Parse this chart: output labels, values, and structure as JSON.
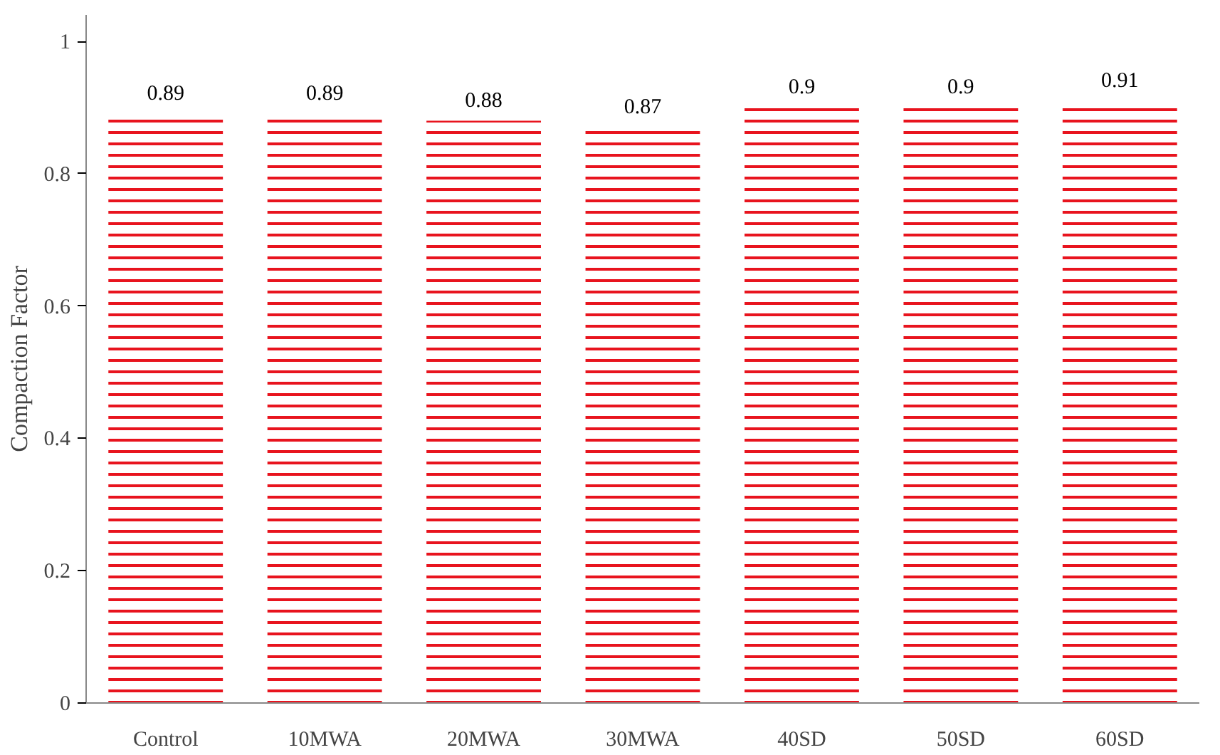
{
  "chart_data": {
    "type": "bar",
    "ylabel": "Compaction Factor",
    "categories": [
      "Control",
      "10MWA",
      "20MWA",
      "30MWA",
      "40SD",
      "50SD",
      "60SD"
    ],
    "values": [
      0.89,
      0.89,
      0.88,
      0.87,
      0.9,
      0.9,
      0.91
    ],
    "color": "#e8141e",
    "ylim": [
      0,
      1.04
    ],
    "yticks": [
      0,
      0.2,
      0.4,
      0.6,
      0.8,
      1
    ],
    "data_labels": true,
    "grid": false
  }
}
